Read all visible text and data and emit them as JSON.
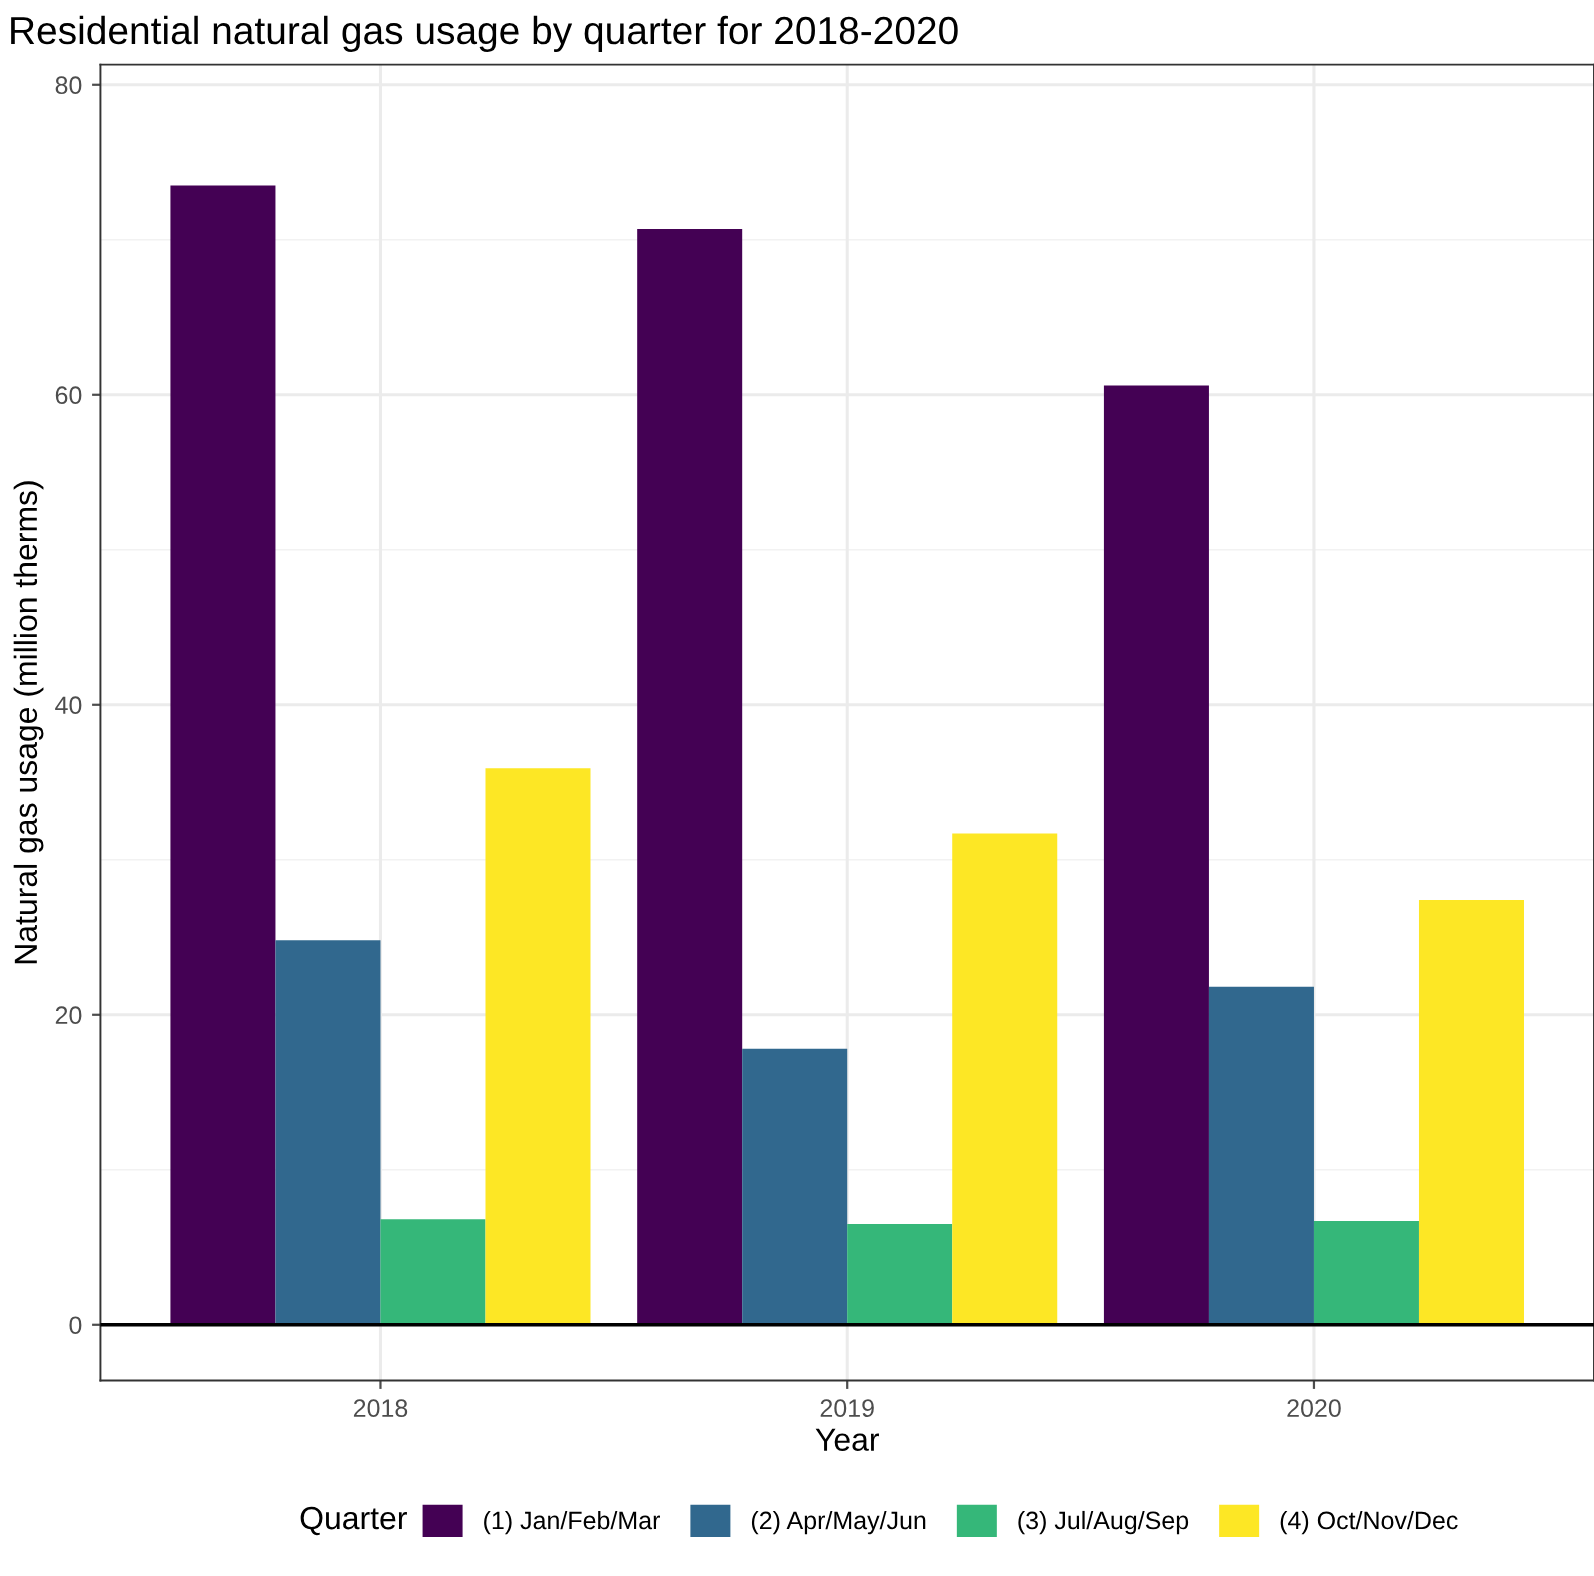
{
  "chart_data": {
    "type": "bar",
    "title": "Residential natural gas usage by quarter for 2018-2020",
    "xlabel": "Year",
    "ylabel": "Natural gas usage (million therms)",
    "legend_title": "Quarter",
    "categories": [
      "2018",
      "2019",
      "2020"
    ],
    "series": [
      {
        "name": "(1) Jan/Feb/Mar",
        "color": "#440154",
        "values": [
          73.5,
          70.7,
          60.6
        ]
      },
      {
        "name": "(2) Apr/May/Jun",
        "color": "#31688e",
        "values": [
          24.8,
          17.8,
          21.8
        ]
      },
      {
        "name": "(3) Jul/Aug/Sep",
        "color": "#35b779",
        "values": [
          6.8,
          6.5,
          6.7
        ]
      },
      {
        "name": "(4) Oct/Nov/Dec",
        "color": "#fde725",
        "values": [
          35.9,
          31.7,
          27.4
        ]
      }
    ],
    "ylim": [
      -3.6,
      81.3
    ],
    "yticks": [
      0,
      20,
      40,
      60,
      80
    ],
    "grid": true,
    "legend": "bottom",
    "ref_lines": [
      {
        "axis": "y",
        "value": 0,
        "color": "#000000"
      }
    ]
  }
}
